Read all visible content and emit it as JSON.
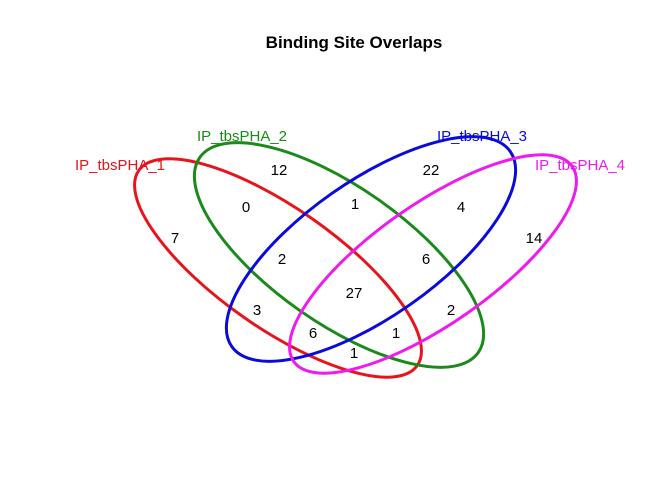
{
  "title": "Binding Site Overlaps",
  "sets": [
    {
      "label": "IP_tbsPHA_1",
      "color": "#e8141c"
    },
    {
      "label": "IP_tbsPHA_2",
      "color": "#1a8a1a"
    },
    {
      "label": "IP_tbsPHA_3",
      "color": "#0a0adc"
    },
    {
      "label": "IP_tbsPHA_4",
      "color": "#ee1aee"
    }
  ],
  "regions": [
    {
      "sets": "1",
      "value": "7"
    },
    {
      "sets": "2",
      "value": "12"
    },
    {
      "sets": "3",
      "value": "22"
    },
    {
      "sets": "4",
      "value": "14"
    },
    {
      "sets": "1&2",
      "value": "0"
    },
    {
      "sets": "2&3",
      "value": "1"
    },
    {
      "sets": "3&4",
      "value": "4"
    },
    {
      "sets": "1&2&3",
      "value": "2"
    },
    {
      "sets": "2&3&4",
      "value": "6"
    },
    {
      "sets": "1&2&3&4",
      "value": "27"
    },
    {
      "sets": "1&3",
      "value": "3"
    },
    {
      "sets": "2&4",
      "value": "2"
    },
    {
      "sets": "1&3&4",
      "value": "6"
    },
    {
      "sets": "1&2&4",
      "value": "1"
    },
    {
      "sets": "1&4",
      "value": "1"
    }
  ]
}
